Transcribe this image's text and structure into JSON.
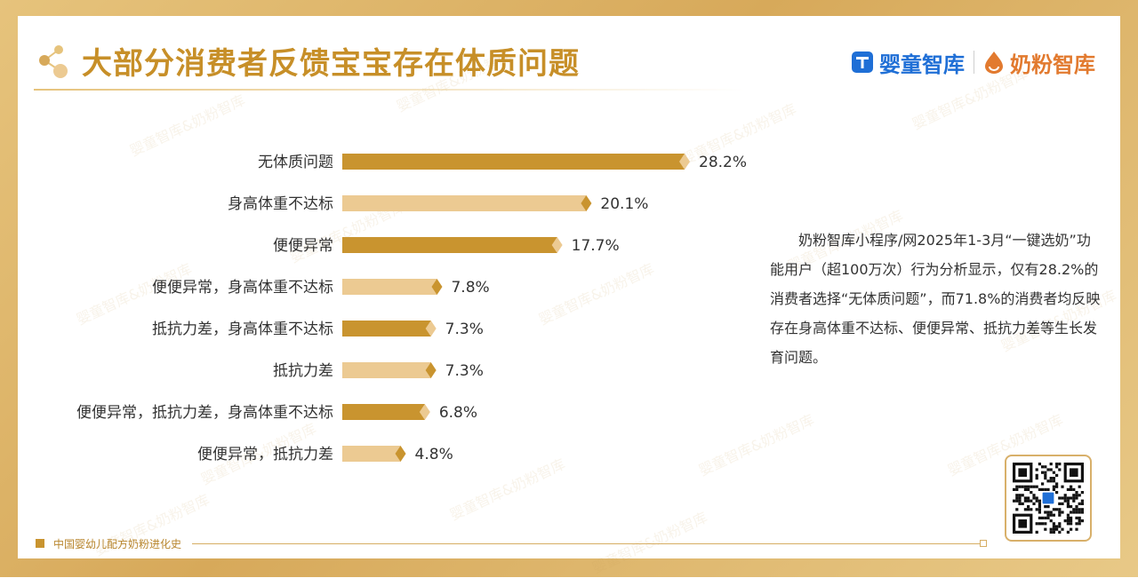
{
  "header": {
    "title": "大部分消费者反馈宝宝存在体质问题",
    "brand1_name": "婴童智库",
    "brand2_name": "奶粉智库"
  },
  "description": "奶粉智库小程序/网2025年1-3月“一键选奶”功能用户（超100万次）行为分析显示，仅有28.2%的消费者选择“无体质问题”，而71.8%的消费者均反映存在身高体重不达标、便便异常、抵抗力差等生长发育问题。",
  "footer": {
    "text": "中国婴幼儿配方奶粉进化史"
  },
  "watermark_text": "婴童智库&奶粉智库",
  "colors": {
    "dark_bar": "#c9942f",
    "light_bar": "#ecca92",
    "title": "#c78f28"
  },
  "icons": {
    "share": "share-icon",
    "qr": "qr-code"
  },
  "chart_data": {
    "type": "bar",
    "orientation": "horizontal",
    "title": "",
    "xlabel": "",
    "ylabel": "",
    "categories": [
      "无体质问题",
      "身高体重不达标",
      "便便异常",
      "便便异常，身高体重不达标",
      "抵抗力差，身高体重不达标",
      "抵抗力差",
      "便便异常，抵抗力差，身高体重不达标",
      "便便异常，抵抗力差"
    ],
    "values": [
      28.2,
      20.1,
      17.7,
      7.8,
      7.3,
      7.3,
      6.8,
      4.8
    ],
    "labels": [
      "28.2%",
      "20.1%",
      "17.7%",
      "7.8%",
      "7.3%",
      "7.3%",
      "6.8%",
      "4.8%"
    ],
    "xlim": [
      0,
      28.2
    ],
    "grid": false,
    "legend": "none"
  }
}
